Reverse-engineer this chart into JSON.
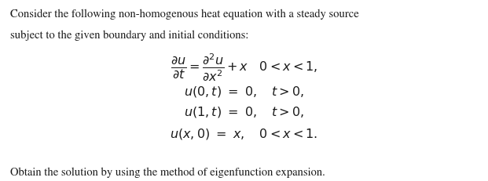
{
  "bg_color": "#ffffff",
  "text_color": "#1a1a1a",
  "line1": "Consider the following non-homogenous heat equation with a steady source",
  "line2": "subject to the given boundary and initial conditions:",
  "bottom_line": "Obtain the solution by using the method of eigenfunction expansion.",
  "fontsize_text": 10.5,
  "fontsize_eq": 11.5,
  "fig_width": 6.21,
  "fig_height": 2.31,
  "dpi": 100
}
